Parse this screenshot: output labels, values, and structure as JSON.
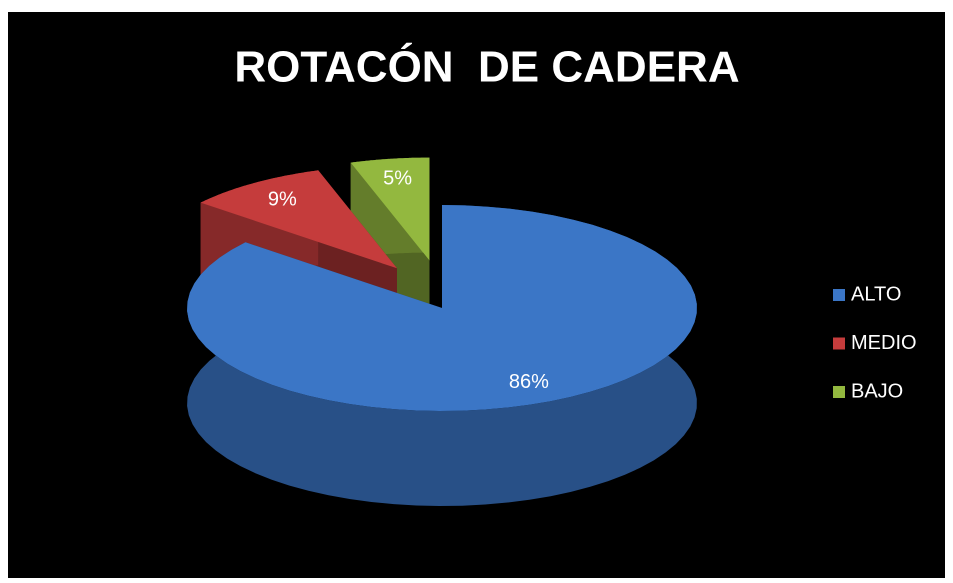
{
  "chart_data": {
    "type": "pie",
    "title": "ROTACÓN  DE CADERA",
    "categories": [
      "ALTO",
      "MEDIO",
      "BAJO"
    ],
    "values": [
      86,
      9,
      5
    ],
    "value_labels": [
      "86%",
      "9%",
      "5%"
    ],
    "colors": [
      "#3b76c6",
      "#c53c3c",
      "#93b83f"
    ],
    "legend": "right"
  }
}
